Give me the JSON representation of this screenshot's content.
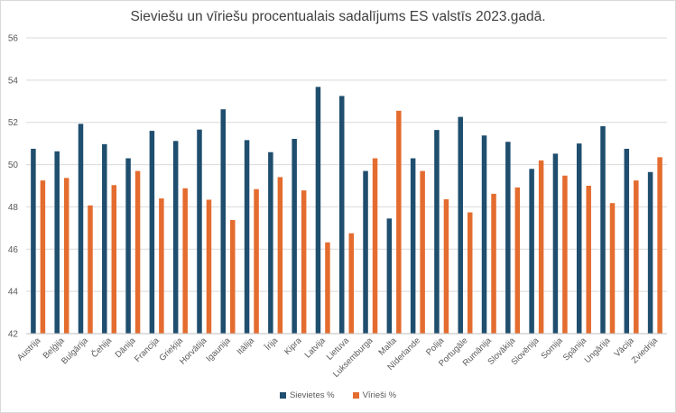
{
  "chart_data": {
    "type": "bar",
    "title": "Sieviešu un vīriešu procentualais sadalījums ES valstīs 2023.gadā.",
    "xlabel": "",
    "ylabel": "",
    "ylim": [
      42,
      56
    ],
    "yticks": [
      42,
      44,
      46,
      48,
      50,
      52,
      54,
      56
    ],
    "grid": true,
    "legend_position": "bottom",
    "categories": [
      "Austrija",
      "Beļģija",
      "Bulgārija",
      "Čehija",
      "Dānija",
      "Francija",
      "Grieķija",
      "Horvātija",
      "Igaunija",
      "Itālija",
      "Īrija",
      "Kipra",
      "Latvija",
      "Lietuva",
      "Luksemburga",
      "Malta",
      "Nīderlande",
      "Polija",
      "Portugāle",
      "Rumānija",
      "Slovākija",
      "Slovēnija",
      "Somija",
      "Spānija",
      "Ungārija",
      "Vācija",
      "Zviedrija"
    ],
    "series": [
      {
        "name": "Sievietes %",
        "color": "#1f4e6e",
        "values": [
          50.75,
          50.63,
          51.93,
          50.97,
          50.3,
          51.6,
          51.12,
          51.66,
          52.62,
          51.16,
          50.59,
          51.22,
          53.68,
          53.25,
          49.7,
          47.45,
          50.3,
          51.64,
          52.26,
          51.38,
          51.08,
          49.8,
          50.52,
          51.0,
          51.82,
          50.75,
          49.65
        ]
      },
      {
        "name": "Vīrieši %",
        "color": "#e46c2f",
        "values": [
          49.25,
          49.37,
          48.07,
          49.03,
          49.7,
          48.4,
          48.88,
          48.34,
          47.38,
          48.84,
          49.41,
          48.78,
          46.32,
          46.75,
          50.3,
          52.55,
          49.7,
          48.36,
          47.74,
          48.62,
          48.92,
          50.2,
          49.48,
          49.0,
          48.18,
          49.25,
          50.35
        ]
      }
    ]
  }
}
